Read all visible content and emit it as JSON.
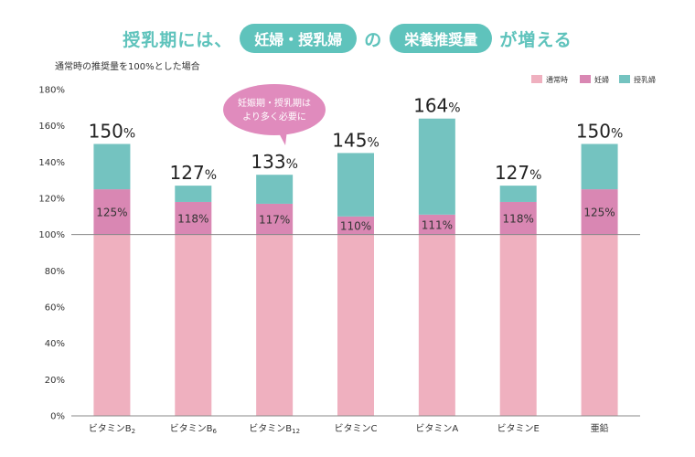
{
  "heading": {
    "prefix": "授乳期には、",
    "pill1": "妊婦・授乳婦",
    "middle": "の",
    "pill2": "栄養推奨量",
    "suffix": "が増える"
  },
  "callout": {
    "line1": "妊娠期・授乳期は",
    "line2": "より多く必要に"
  },
  "colors": {
    "normal": "#efb0bf",
    "pregnant": "#d987b3",
    "lactating": "#74c3c0",
    "axis": "#888888",
    "callout": "#e08bbd"
  },
  "chart_data": {
    "type": "bar",
    "ylabel": "通常時の推奨量を100%とした場合",
    "ylim": [
      0,
      180
    ],
    "yticks": [
      {
        "value": 0,
        "label": "0%"
      },
      {
        "value": 20,
        "label": "20%"
      },
      {
        "value": 40,
        "label": "40%"
      },
      {
        "value": 60,
        "label": "60%"
      },
      {
        "value": 80,
        "label": "80%"
      },
      {
        "value": 100,
        "label": "100%"
      },
      {
        "value": 120,
        "label": "120%"
      },
      {
        "value": 140,
        "label": "140%"
      },
      {
        "value": 160,
        "label": "160%"
      },
      {
        "value": 180,
        "label": "180%"
      }
    ],
    "legend": {
      "position": "top-right",
      "items": [
        "通常時",
        "妊婦",
        "授乳婦"
      ]
    },
    "reference_line": 100,
    "categories": [
      {
        "base": "ビタミンB",
        "sub": "2"
      },
      {
        "base": "ビタミンB",
        "sub": "6"
      },
      {
        "base": "ビタミンB",
        "sub": "12"
      },
      {
        "base": "ビタミンC",
        "sub": ""
      },
      {
        "base": "ビタミンA",
        "sub": ""
      },
      {
        "base": "ビタミンE",
        "sub": ""
      },
      {
        "base": "亜鉛",
        "sub": ""
      }
    ],
    "series": [
      {
        "name": "通常時",
        "values": [
          100,
          100,
          100,
          100,
          100,
          100,
          100
        ]
      },
      {
        "name": "妊婦",
        "values": [
          125,
          118,
          117,
          110,
          111,
          118,
          125
        ]
      },
      {
        "name": "授乳婦",
        "values": [
          150,
          127,
          133,
          145,
          164,
          127,
          150
        ]
      }
    ],
    "pregnant_labels": [
      "125%",
      "118%",
      "117%",
      "110%",
      "111%",
      "118%",
      "125%"
    ],
    "lactating_labels": [
      {
        "num": "150",
        "unit": "%"
      },
      {
        "num": "127",
        "unit": "%"
      },
      {
        "num": "133",
        "unit": "%"
      },
      {
        "num": "145",
        "unit": "%"
      },
      {
        "num": "164",
        "unit": "%"
      },
      {
        "num": "127",
        "unit": "%"
      },
      {
        "num": "150",
        "unit": "%"
      }
    ]
  }
}
